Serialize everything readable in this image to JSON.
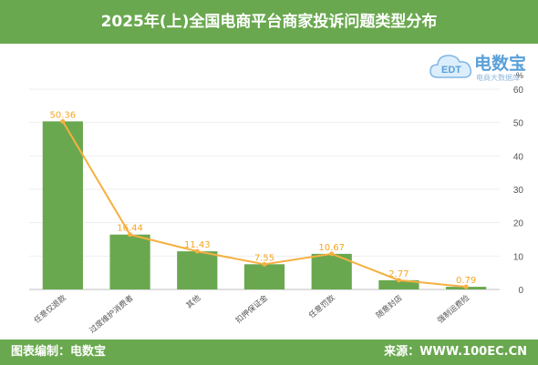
{
  "header": {
    "title": "2025年(上)全国电商平台商家投诉问题类型分布"
  },
  "logo": {
    "name": "电数宝",
    "badge": "EDT",
    "subtitle": "电商大数据库"
  },
  "chart_data": {
    "type": "bar",
    "categories": [
      "任意仅退款",
      "过度维护消费者",
      "其他",
      "扣押保证金",
      "任意罚款",
      "随意封店",
      "强制运费险"
    ],
    "values": [
      50.36,
      16.44,
      11.43,
      7.55,
      10.67,
      2.77,
      0.79
    ],
    "overlay_line": true,
    "ylabel": "%",
    "ylim": [
      0,
      60
    ],
    "yticks": [
      0,
      10,
      20,
      30,
      40,
      50,
      60
    ],
    "y_axis_position": "right",
    "grid": true,
    "bar_color": "#6aa84f",
    "line_color": "#f5b041",
    "label_color": "#f5a623"
  },
  "footer": {
    "left": "图表编制：电数宝",
    "right": "来源：WWW.100EC.CN"
  }
}
